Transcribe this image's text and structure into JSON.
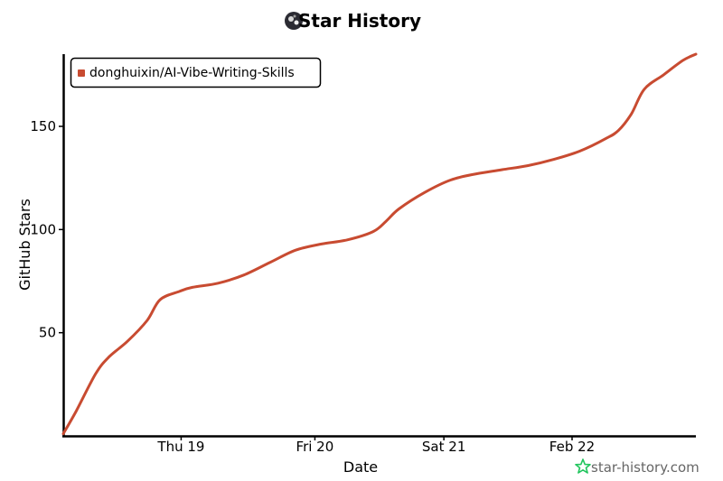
{
  "chart_data": {
    "type": "line",
    "title": "Star History",
    "xlabel": "Date",
    "ylabel": "GitHub Stars",
    "x_ticks": [
      "Thu 19",
      "Fri 20",
      "Sat 21",
      "Feb 22"
    ],
    "y_ticks": [
      50,
      100,
      150
    ],
    "ylim": [
      0,
      185
    ],
    "grid": false,
    "legend_position": "top-left",
    "series": [
      {
        "name": "donghuixin/AI-Vibe-Writing-Skills",
        "color": "#c84b31",
        "points": [
          [
            0.0,
            1
          ],
          [
            0.1,
            12
          ],
          [
            0.25,
            30
          ],
          [
            0.35,
            38
          ],
          [
            0.5,
            46
          ],
          [
            0.65,
            56
          ],
          [
            0.75,
            66
          ],
          [
            0.9,
            70
          ],
          [
            1.0,
            72
          ],
          [
            1.2,
            74
          ],
          [
            1.4,
            78
          ],
          [
            1.6,
            84
          ],
          [
            1.8,
            90
          ],
          [
            2.0,
            93
          ],
          [
            2.2,
            95
          ],
          [
            2.4,
            99
          ],
          [
            2.5,
            104
          ],
          [
            2.6,
            110
          ],
          [
            2.8,
            118
          ],
          [
            3.0,
            124
          ],
          [
            3.2,
            127
          ],
          [
            3.4,
            129
          ],
          [
            3.6,
            131
          ],
          [
            3.8,
            134
          ],
          [
            4.0,
            138
          ],
          [
            4.2,
            144
          ],
          [
            4.3,
            148
          ],
          [
            4.4,
            156
          ],
          [
            4.5,
            168
          ],
          [
            4.65,
            175
          ],
          [
            4.8,
            182
          ],
          [
            4.9,
            185
          ]
        ]
      }
    ],
    "x_tick_positions": [
      0.913,
      1.949,
      2.948,
      3.941
    ],
    "x_range": [
      0,
      4.9
    ]
  },
  "watermark": {
    "text": "star-history.com",
    "icon": "star-icon"
  },
  "logo": {
    "icon": "avatar-icon"
  }
}
